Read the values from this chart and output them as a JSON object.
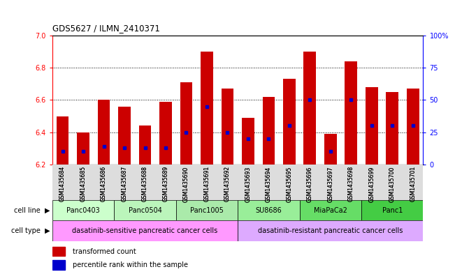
{
  "title": "GDS5627 / ILMN_2410371",
  "samples": [
    "GSM1435684",
    "GSM1435685",
    "GSM1435686",
    "GSM1435687",
    "GSM1435688",
    "GSM1435689",
    "GSM1435690",
    "GSM1435691",
    "GSM1435692",
    "GSM1435693",
    "GSM1435694",
    "GSM1435695",
    "GSM1435696",
    "GSM1435697",
    "GSM1435698",
    "GSM1435699",
    "GSM1435700",
    "GSM1435701"
  ],
  "transformed_count": [
    6.5,
    6.4,
    6.6,
    6.56,
    6.44,
    6.59,
    6.71,
    6.9,
    6.67,
    6.49,
    6.62,
    6.73,
    6.9,
    6.39,
    6.84,
    6.68,
    6.65,
    6.67
  ],
  "percentile_rank": [
    10,
    10,
    14,
    13,
    13,
    13,
    25,
    45,
    25,
    20,
    20,
    30,
    50,
    10,
    50,
    30,
    30,
    30
  ],
  "ylim_left": [
    6.2,
    7.0
  ],
  "ylim_right": [
    0,
    100
  ],
  "left_yticks": [
    6.2,
    6.4,
    6.6,
    6.8,
    7.0
  ],
  "right_yticks": [
    0,
    25,
    50,
    75,
    100
  ],
  "right_yticklabels": [
    "0",
    "25",
    "50",
    "75",
    "100%"
  ],
  "bar_color": "#cc0000",
  "dot_color": "#0000cc",
  "bar_width": 0.6,
  "cell_line_groups": [
    {
      "label": "Panc0403",
      "start": 0,
      "end": 2
    },
    {
      "label": "Panc0504",
      "start": 3,
      "end": 5
    },
    {
      "label": "Panc1005",
      "start": 6,
      "end": 8
    },
    {
      "label": "SU8686",
      "start": 9,
      "end": 11
    },
    {
      "label": "MiaPaCa2",
      "start": 12,
      "end": 14
    },
    {
      "label": "Panc1",
      "start": 15,
      "end": 17
    }
  ],
  "cell_line_colors": [
    "#ccffcc",
    "#bbf5bb",
    "#aaeaaa",
    "#99ee99",
    "#66dd66",
    "#44cc44"
  ],
  "cell_type_groups": [
    {
      "label": "dasatinib-sensitive pancreatic cancer cells",
      "start": 0,
      "end": 8,
      "color": "#ff99ff"
    },
    {
      "label": "dasatinib-resistant pancreatic cancer cells",
      "start": 9,
      "end": 17,
      "color": "#ddaaff"
    }
  ],
  "left_label": "cell line",
  "left_label2": "cell type",
  "legend_red": "transformed count",
  "legend_blue": "percentile rank within the sample"
}
